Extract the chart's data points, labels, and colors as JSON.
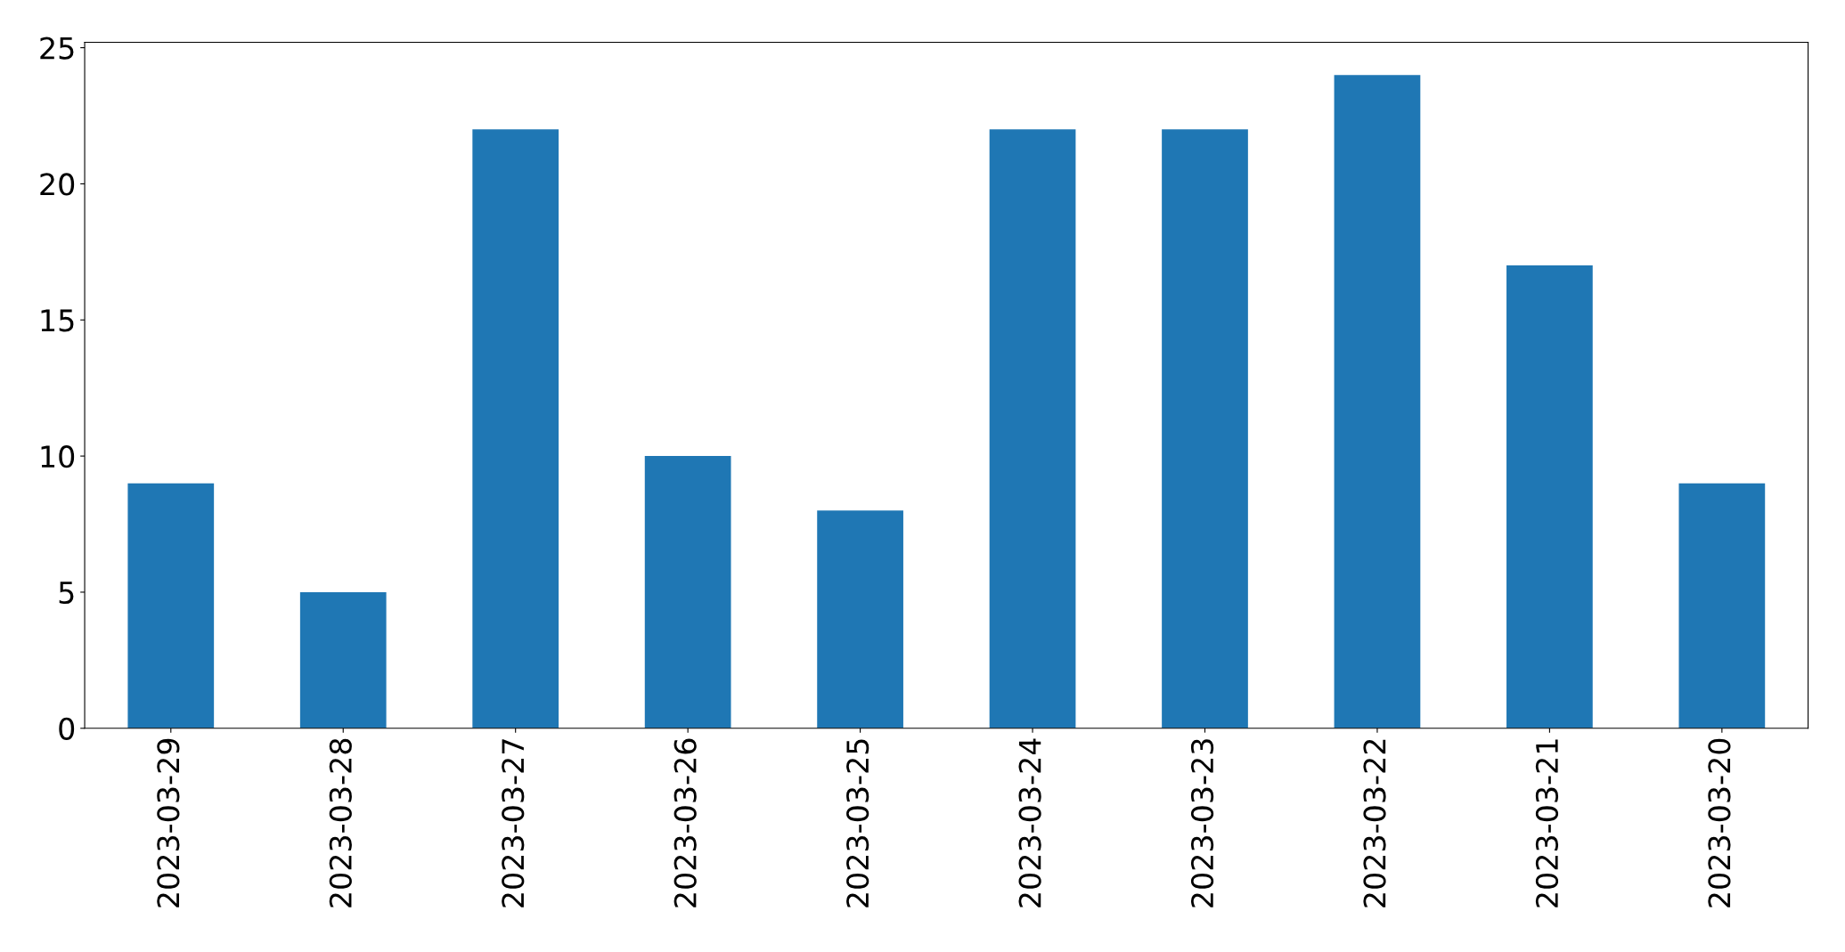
{
  "chart_data": {
    "type": "bar",
    "categories": [
      "2023-03-29",
      "2023-03-28",
      "2023-03-27",
      "2023-03-26",
      "2023-03-25",
      "2023-03-24",
      "2023-03-23",
      "2023-03-22",
      "2023-03-21",
      "2023-03-20"
    ],
    "values": [
      9,
      5,
      22,
      10,
      8,
      22,
      22,
      24,
      17,
      9
    ],
    "color": "#1f77b4",
    "ylim": [
      0,
      25.2
    ],
    "yticks": [
      0,
      5,
      10,
      15,
      20,
      25
    ],
    "grid": false,
    "legend": false
  }
}
